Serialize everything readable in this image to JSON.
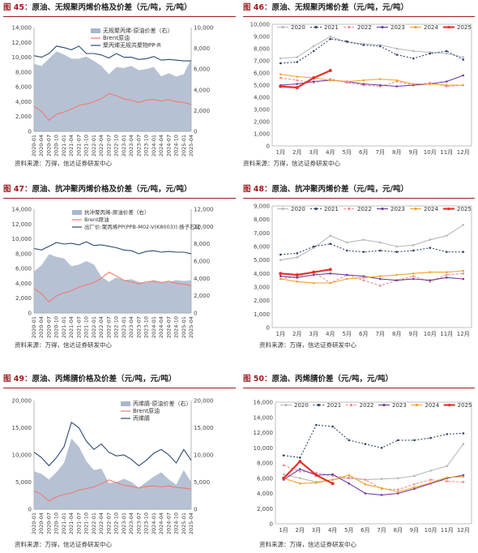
{
  "source_text": "资料来源：万得，信达证券研发中心",
  "charts": [
    {
      "id": "c45",
      "title_num": "图 45：",
      "title_text": "原油、无规聚丙烯价格及价差（元/吨，元/吨）",
      "chart_data": {
        "type": "area+line",
        "dual_axis": true,
        "ylim": [
          0,
          14000
        ],
        "yticks": [
          0,
          2000,
          4000,
          6000,
          8000,
          10000,
          12000,
          14000
        ],
        "y2lim": [
          0,
          10000
        ],
        "y2ticks": [
          0,
          2000,
          4000,
          6000,
          8000,
          10000
        ],
        "xticks": [
          "2020-01",
          "2020-04",
          "2020-07",
          "2020-10",
          "2021-01",
          "2021-04",
          "2021-07",
          "2021-10",
          "2022-01",
          "2022-04",
          "2022-07",
          "2022-10",
          "2023-01",
          "2023-04",
          "2023-07",
          "2023-10",
          "2024-01",
          "2024-04",
          "2024-07",
          "2024-10",
          "2025-01",
          "2025-04"
        ],
        "legend": [
          "无规聚丙烯-原油价差（右）",
          "Brent原油",
          "聚丙烯无规共聚物PP-R"
        ],
        "colors": [
          "#a9b6cc",
          "#f27a6e",
          "#2c4a74"
        ],
        "series": [
          {
            "name": "无规聚丙烯-原油价差（右）",
            "axis": "right",
            "kind": "area",
            "values": [
              6500,
              6300,
              7000,
              7700,
              7400,
              7000,
              7000,
              7200,
              6800,
              6300,
              5500,
              6200,
              6100,
              6300,
              5900,
              6000,
              6200,
              5300,
              5600,
              5300,
              5500,
              7000
            ]
          },
          {
            "name": "Brent原油",
            "axis": "left",
            "kind": "line",
            "values": [
              3400,
              2700,
              1500,
              2300,
              2600,
              3000,
              3500,
              3700,
              4000,
              4400,
              5100,
              4800,
              4400,
              4200,
              3900,
              4200,
              4300,
              4100,
              4300,
              4000,
              3900,
              3600
            ]
          },
          {
            "name": "聚丙烯无规共聚物PP-R",
            "axis": "left",
            "kind": "line",
            "values": [
              10200,
              10000,
              10500,
              11500,
              11300,
              11000,
              11500,
              10500,
              10500,
              10300,
              9900,
              10500,
              10000,
              10000,
              9700,
              9800,
              10100,
              9600,
              9700,
              9600,
              9500,
              9500
            ]
          }
        ]
      }
    },
    {
      "id": "c46",
      "title_num": "图 46：",
      "title_text": "原油、无规聚丙烯价差（元/吨，元/吨）",
      "chart_data": {
        "type": "line",
        "ylim": [
          0,
          10000
        ],
        "yticks": [
          0,
          1000,
          2000,
          3000,
          4000,
          5000,
          6000,
          7000,
          8000,
          9000,
          10000
        ],
        "months": [
          "1月",
          "2月",
          "3月",
          "4月",
          "5月",
          "6月",
          "7月",
          "8月",
          "9月",
          "10月",
          "11月",
          "12月"
        ],
        "legend_pos": "top",
        "series": [
          {
            "name": "2020",
            "color": "#b8b8bb",
            "dash": "",
            "values": [
              7200,
              7300,
              8200,
              9000,
              8500,
              8400,
              8300,
              8000,
              7800,
              7700,
              7600,
              7300
            ]
          },
          {
            "name": "2021",
            "color": "#2f4668",
            "dash": "2 2",
            "values": [
              6800,
              6900,
              7800,
              8800,
              8600,
              8300,
              8200,
              7500,
              7200,
              7600,
              7800,
              7100
            ]
          },
          {
            "name": "2022",
            "color": "#f08a8a",
            "dash": "3 2",
            "values": [
              5600,
              5400,
              5200,
              5500,
              5200,
              5000,
              4900,
              5300,
              5000,
              5200,
              4900,
              5000
            ]
          },
          {
            "name": "2023",
            "color": "#6b3b9a",
            "dash": "",
            "values": [
              5000,
              5100,
              5300,
              5400,
              5300,
              5100,
              5000,
              4900,
              5000,
              5100,
              5300,
              5800
            ]
          },
          {
            "name": "2024",
            "color": "#f2a12d",
            "dash": "",
            "values": [
              5900,
              5700,
              5600,
              5400,
              5300,
              5400,
              5500,
              5400,
              5100,
              5100,
              5000,
              5000
            ]
          },
          {
            "name": "2025",
            "color": "#e5322d",
            "dash": "",
            "values": [
              4900,
              4800,
              5600,
              6200
            ]
          }
        ]
      }
    },
    {
      "id": "c47",
      "title_num": "图 47：",
      "title_text": "原油、抗冲聚丙烯价格及价差（元/吨，元/吨）",
      "chart_data": {
        "type": "area+line",
        "dual_axis": true,
        "ylim": [
          0,
          14000
        ],
        "yticks": [
          0,
          2000,
          4000,
          6000,
          8000,
          10000,
          12000,
          14000
        ],
        "y2lim": [
          0,
          12000
        ],
        "y2ticks": [
          0,
          2000,
          4000,
          6000,
          8000,
          10000,
          12000
        ],
        "xticks": [
          "2020-01",
          "2020-04",
          "2020-07",
          "2020-10",
          "2021-01",
          "2021-04",
          "2021-07",
          "2021-10",
          "2022-01",
          "2022-04",
          "2022-07",
          "2022-10",
          "2023-01",
          "2023-04",
          "2023-07",
          "2023-10",
          "2024-01",
          "2024-04",
          "2024-07",
          "2024-10",
          "2025-01",
          "2025-04"
        ],
        "legend": [
          "抗冲聚丙烯-原油价差（右）",
          "Brent原油",
          "出厂价:聚丙烯PP(PPB-M02-V(K8003)):扬子石化"
        ],
        "colors": [
          "#a9b6cc",
          "#f27a6e",
          "#2c4a74"
        ],
        "series": [
          {
            "name": "抗冲聚丙烯-原油价差（右）",
            "axis": "right",
            "kind": "area",
            "values": [
              4800,
              5500,
              6800,
              6500,
              6300,
              5400,
              5600,
              6000,
              5600,
              4200,
              3600,
              4100,
              3800,
              3900,
              3600,
              3500,
              3800,
              3600,
              3600,
              3800,
              3700,
              3800
            ]
          },
          {
            "name": "Brent原油",
            "axis": "left",
            "kind": "line",
            "values": [
              3300,
              2600,
              1500,
              2300,
              2700,
              3000,
              3500,
              3800,
              4100,
              4700,
              5500,
              5000,
              4400,
              4200,
              3900,
              4200,
              4300,
              4100,
              4300,
              4000,
              3900,
              3700
            ]
          },
          {
            "name": "出厂价:聚丙烯PP(PPB-M02-V(K8003)):扬子石化",
            "axis": "left",
            "kind": "line",
            "values": [
              8700,
              8500,
              9000,
              9500,
              9300,
              9400,
              9200,
              9600,
              9100,
              9200,
              9000,
              8800,
              8500,
              8400,
              8000,
              8300,
              8400,
              8200,
              8300,
              8200,
              8200,
              8000
            ]
          }
        ]
      }
    },
    {
      "id": "c48",
      "title_num": "图 48：",
      "title_text": "原油、抗冲聚丙烯价差（元/吨，元/吨）",
      "chart_data": {
        "type": "line",
        "ylim": [
          0,
          9000
        ],
        "yticks": [
          0,
          1000,
          2000,
          3000,
          4000,
          5000,
          6000,
          7000,
          8000,
          9000
        ],
        "months": [
          "1月",
          "2月",
          "3月",
          "4月",
          "5月",
          "6月",
          "7月",
          "8月",
          "9月",
          "10月",
          "11月",
          "12月"
        ],
        "legend_pos": "top",
        "series": [
          {
            "name": "2020",
            "color": "#b8b8bb",
            "dash": "",
            "values": [
              5000,
              5200,
              5900,
              6800,
              6300,
              6500,
              6300,
              6000,
              6100,
              6500,
              6800,
              7600
            ]
          },
          {
            "name": "2021",
            "color": "#2f4668",
            "dash": "2 2",
            "values": [
              5400,
              5500,
              6000,
              6200,
              5700,
              5600,
              5700,
              5600,
              5700,
              5900,
              5600,
              5600
            ]
          },
          {
            "name": "2022",
            "color": "#f08a8a",
            "dash": "3 2",
            "values": [
              3600,
              3800,
              4100,
              3300,
              3900,
              3500,
              3100,
              3500,
              3800,
              3400,
              3900,
              4000
            ]
          },
          {
            "name": "2023",
            "color": "#6b3b9a",
            "dash": "",
            "values": [
              3800,
              3700,
              3900,
              4000,
              3900,
              3800,
              3600,
              3500,
              3600,
              3500,
              3700,
              3600
            ]
          },
          {
            "name": "2024",
            "color": "#f2a12d",
            "dash": "",
            "values": [
              3600,
              3400,
              3300,
              3300,
              3600,
              3700,
              3800,
              3900,
              4000,
              4100,
              4100,
              4200
            ]
          },
          {
            "name": "2025",
            "color": "#e5322d",
            "dash": "",
            "values": [
              4000,
              3900,
              4100,
              4300
            ]
          }
        ]
      }
    },
    {
      "id": "c49",
      "title_num": "图 49：",
      "title_text": "原油、丙烯腈价格及价差（元/吨，元/吨）",
      "chart_data": {
        "type": "area+line",
        "dual_axis": true,
        "ylim": [
          0,
          20000
        ],
        "yticks": [
          0,
          5000,
          10000,
          15000,
          20000
        ],
        "y2lim": [
          0,
          20000
        ],
        "y2ticks": [
          0,
          5000,
          10000,
          15000,
          20000
        ],
        "xticks": [
          "2020-01",
          "2020-04",
          "2020-07",
          "2020-10",
          "2021-01",
          "2021-04",
          "2021-07",
          "2021-10",
          "2022-01",
          "2022-04",
          "2022-07",
          "2022-10",
          "2023-01",
          "2023-04",
          "2023-07",
          "2023-10",
          "2024-01",
          "2024-04",
          "2024-07",
          "2024-10",
          "2025-01",
          "2025-04"
        ],
        "legend": [
          "丙烯腈-原油价差（右）",
          "Brent原油",
          "丙烯腈"
        ],
        "colors": [
          "#a9b6cc",
          "#f27a6e",
          "#2c4a74"
        ],
        "series": [
          {
            "name": "丙烯腈-原油价差（右）",
            "axis": "right",
            "kind": "area",
            "values": [
              7000,
              6500,
              5500,
              6800,
              8500,
              13000,
              11500,
              8800,
              7200,
              7500,
              4800,
              5000,
              5600,
              5000,
              4000,
              5000,
              6000,
              6800,
              5500,
              4500,
              7200,
              5000
            ]
          },
          {
            "name": "Brent原油",
            "axis": "left",
            "kind": "line",
            "values": [
              3400,
              2700,
              1500,
              2300,
              2700,
              3000,
              3500,
              3800,
              4100,
              4700,
              5400,
              4900,
              4400,
              4200,
              3900,
              4200,
              4300,
              4100,
              4300,
              4000,
              3900,
              3700
            ]
          },
          {
            "name": "丙烯腈",
            "axis": "left",
            "kind": "line",
            "values": [
              10500,
              9500,
              8000,
              9500,
              11500,
              16000,
              15000,
              12500,
              11000,
              12000,
              10500,
              9800,
              10000,
              9200,
              8000,
              9000,
              10300,
              11000,
              10000,
              8500,
              11000,
              9000
            ]
          }
        ]
      }
    },
    {
      "id": "c50",
      "title_num": "图 50：",
      "title_text": "原油、丙烯腈价差（元/吨，元/吨）",
      "chart_data": {
        "type": "line",
        "ylim": [
          0,
          16000
        ],
        "yticks": [
          0,
          2000,
          4000,
          6000,
          8000,
          10000,
          12000,
          14000,
          16000
        ],
        "months": [
          "1月",
          "2月",
          "3月",
          "4月",
          "5月",
          "6月",
          "7月",
          "8月",
          "9月",
          "10月",
          "11月",
          "12月"
        ],
        "legend_pos": "top",
        "series": [
          {
            "name": "2020",
            "color": "#b8b8bb",
            "dash": "",
            "values": [
              6500,
              6000,
              5500,
              5800,
              6100,
              5800,
              5900,
              6000,
              6300,
              7000,
              7600,
              10500
            ]
          },
          {
            "name": "2021",
            "color": "#2f4668",
            "dash": "2 2",
            "values": [
              9000,
              8700,
              13000,
              12800,
              11000,
              10500,
              10000,
              11000,
              11000,
              11300,
              11800,
              11900
            ]
          },
          {
            "name": "2022",
            "color": "#f08a8a",
            "dash": "3 2",
            "values": [
              7700,
              6900,
              6700,
              6300,
              6000,
              5800,
              4600,
              4500,
              5200,
              5800,
              5600,
              5500
            ]
          },
          {
            "name": "2023",
            "color": "#6b3b9a",
            "dash": "",
            "values": [
              5800,
              7200,
              6400,
              6500,
              5300,
              4000,
              3800,
              4000,
              4600,
              5300,
              6000,
              6400
            ]
          },
          {
            "name": "2024",
            "color": "#f2a12d",
            "dash": "",
            "values": [
              6000,
              5300,
              5400,
              5800,
              6400,
              5200,
              4700,
              4200,
              4800,
              5400,
              6100,
              6200
            ]
          },
          {
            "name": "2025",
            "color": "#e5322d",
            "dash": "",
            "values": [
              6000,
              8200,
              6400,
              5300
            ]
          }
        ]
      }
    }
  ]
}
